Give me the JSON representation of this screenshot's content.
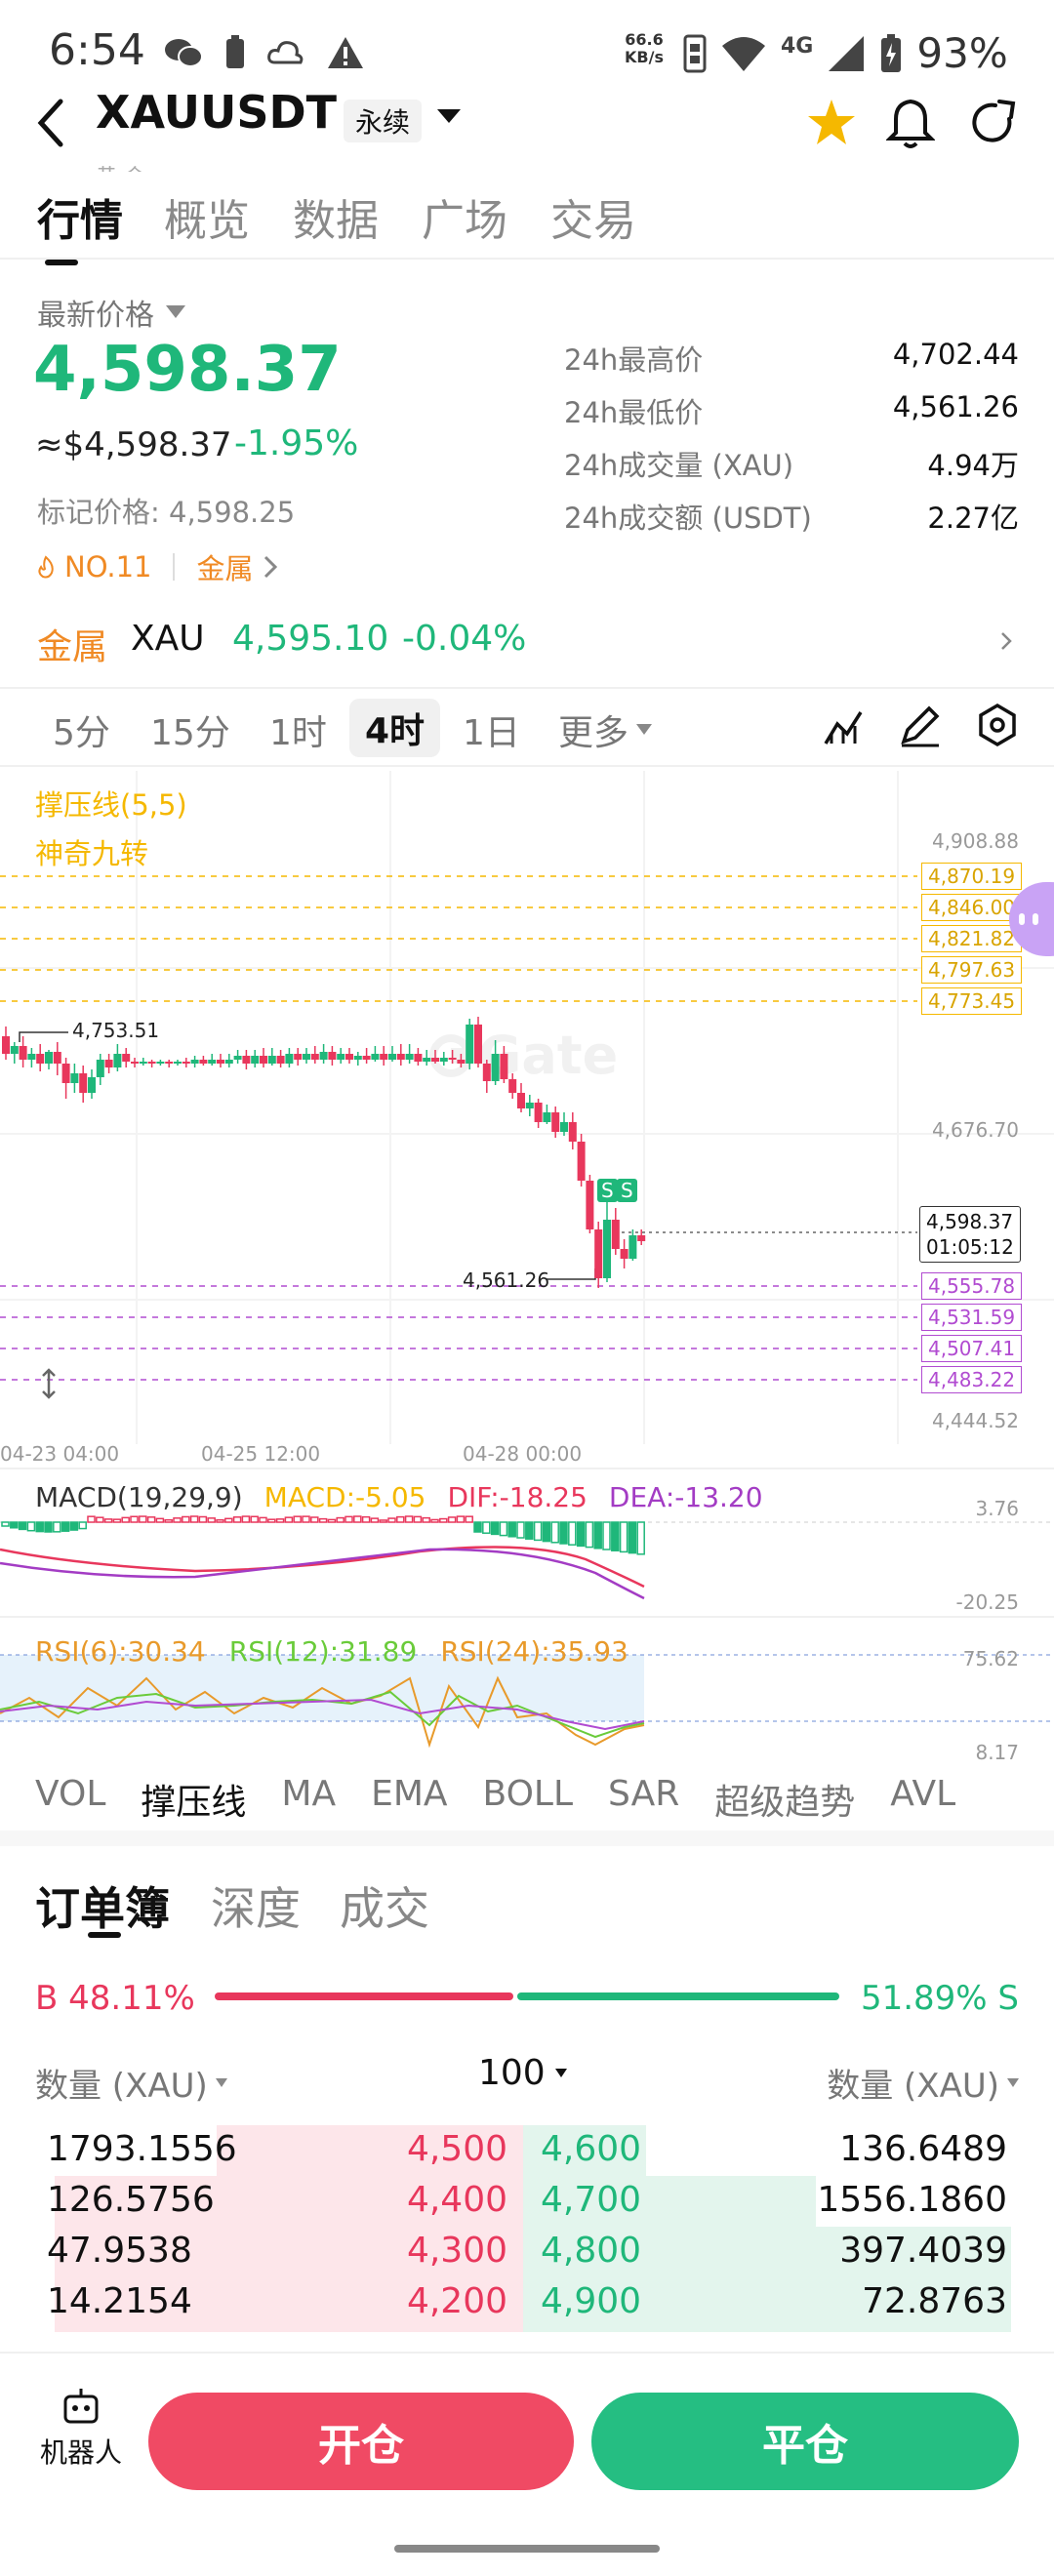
{
  "status": {
    "time": "6:54",
    "net_speed_top": "66.6",
    "net_speed_unit": "KB/s",
    "network": "4G",
    "battery": "93%"
  },
  "header": {
    "symbol": "XAUUSDT",
    "contract_type": "永续",
    "sub_partial": "黄 金"
  },
  "tabs": [
    "行情",
    "概览",
    "数据",
    "广场",
    "交易"
  ],
  "price": {
    "label": "最新价格",
    "last": "4,598.37",
    "approx": "≈$4,598.37",
    "change": "-1.95%",
    "mark_label": "标记价格:",
    "mark_value": "4,598.25",
    "rank": "NO.11",
    "category": "金属"
  },
  "stats": [
    {
      "label": "24h最高价",
      "value": "4,702.44"
    },
    {
      "label": "24h最低价",
      "value": "4,561.26"
    },
    {
      "label": "24h成交量 (XAU)",
      "value": "4.94万"
    },
    {
      "label": "24h成交额 (USDT)",
      "value": "2.27亿"
    }
  ],
  "metal_bar": {
    "category": "金属",
    "asset": "XAU",
    "price": "4,595.10",
    "change": "-0.04%"
  },
  "timeframes": [
    "5分",
    "15分",
    "1时",
    "4时",
    "1日",
    "更多"
  ],
  "chart": {
    "overlay1": "撑压线(5,5)",
    "overlay2": "神奇九转",
    "y_labels": [
      "4,908.88",
      "4,676.70",
      "4,444.52"
    ],
    "resistance": [
      "4,870.19",
      "4,846.00",
      "4,821.82",
      "4,797.63",
      "4,773.45"
    ],
    "support": [
      "4,555.78",
      "4,531.59",
      "4,507.41",
      "4,483.22"
    ],
    "current_price": "4,598.37",
    "countdown": "01:05:12",
    "high_mark": "4,753.51",
    "low_mark": "4,561.26",
    "x_labels": [
      "04-23 04:00",
      "04-25 12:00",
      "04-28 00:00"
    ],
    "watermark": "Gate",
    "signal": "S"
  },
  "macd": {
    "label": "MACD(19,29,9)",
    "macd": "MACD:-5.05",
    "dif": "DIF:-18.25",
    "dea": "DEA:-13.20",
    "top": "3.76",
    "bottom": "-20.25"
  },
  "rsi": {
    "r6": "RSI(6):30.34",
    "r12": "RSI(12):31.89",
    "r24": "RSI(24):35.93",
    "top": "75.62",
    "bottom": "8.17"
  },
  "indicators": [
    "VOL",
    "撑压线",
    "MA",
    "EMA",
    "BOLL",
    "SAR",
    "超级趋势",
    "AVL"
  ],
  "orderbook": {
    "tabs": [
      "订单簿",
      "深度",
      "成交"
    ],
    "buy_pct": "B 48.11%",
    "sell_pct": "51.89% S",
    "col_left": "数量 (XAU)",
    "precision": "100",
    "col_right": "数量 (XAU)",
    "rows": [
      {
        "bq": "1793.1556",
        "bp": "4,500",
        "ap": "4,600",
        "aq": "136.6489"
      },
      {
        "bq": "126.5756",
        "bp": "4,400",
        "ap": "4,700",
        "aq": "1556.1860"
      },
      {
        "bq": "47.9538",
        "bp": "4,300",
        "ap": "4,800",
        "aq": "397.4039"
      },
      {
        "bq": "14.2154",
        "bp": "4,200",
        "ap": "4,900",
        "aq": "72.8763"
      }
    ]
  },
  "bottom": {
    "robot": "机器人",
    "open": "开仓",
    "close": "平仓"
  }
}
